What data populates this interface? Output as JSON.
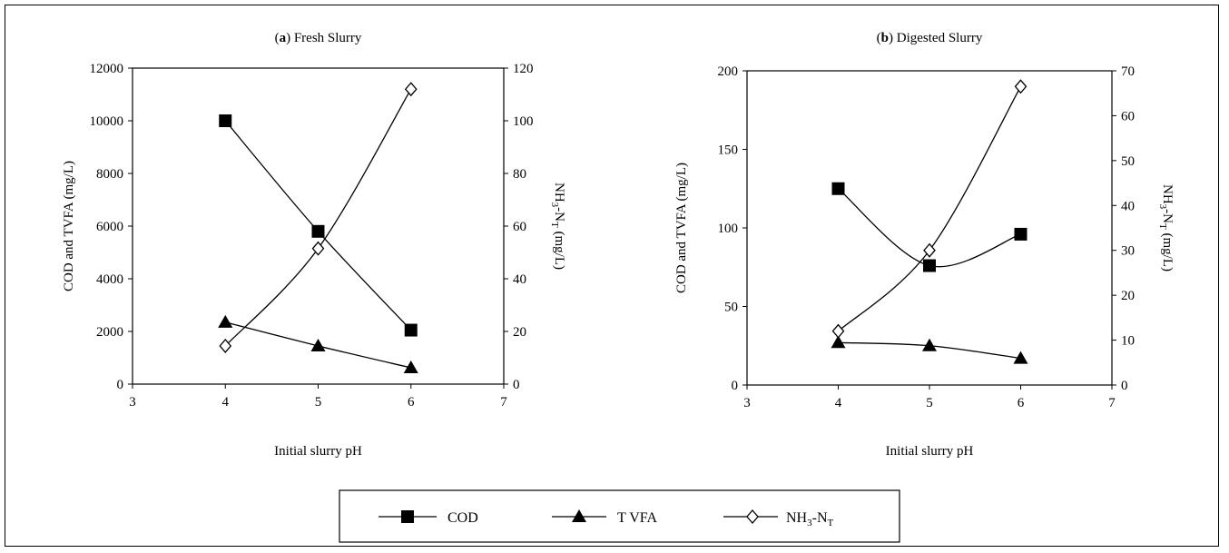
{
  "chart_data": [
    {
      "type": "line",
      "title_letter": "a",
      "title_text": " Fresh Slurry",
      "xlabel": "Initial slurry pH",
      "ylabel_left": "COD  and TVFA (mg/L)",
      "ylabel_right": "NH3-NT (mg/L)",
      "xlim": [
        3,
        7
      ],
      "xticks": [
        "3",
        "4",
        "5",
        "6",
        "7"
      ],
      "ylim_left": [
        0,
        12000
      ],
      "yticks_left": [
        "0",
        "2000",
        "4000",
        "6000",
        "8000",
        "10000",
        "12000"
      ],
      "ylim_right": [
        0,
        120
      ],
      "yticks_right": [
        "0",
        "20",
        "40",
        "60",
        "80",
        "100",
        "120"
      ],
      "x": [
        4,
        5,
        6
      ],
      "series": [
        {
          "name": "COD",
          "axis": "left",
          "marker": "square",
          "values": [
            10000,
            5800,
            2050
          ]
        },
        {
          "name": "TVFA",
          "axis": "left",
          "marker": "triangle",
          "values": [
            2350,
            1450,
            620
          ]
        },
        {
          "name": "NH3-NT",
          "axis": "right",
          "marker": "diamond",
          "values": [
            14.5,
            51.5,
            112
          ]
        }
      ]
    },
    {
      "type": "line",
      "title_letter": "b",
      "title_text": " Digested Slurry",
      "xlabel": "Initial slurry pH",
      "ylabel_left": "COD  and TVFA (mg/L)",
      "ylabel_right": "NH3-NT (mg/L)",
      "xlim": [
        3,
        7
      ],
      "xticks": [
        "3",
        "4",
        "5",
        "6",
        "7"
      ],
      "ylim_left": [
        0,
        200
      ],
      "yticks_left": [
        "0",
        "50",
        "100",
        "150",
        "200"
      ],
      "ylim_right": [
        0,
        70
      ],
      "yticks_right": [
        "0",
        "10",
        "20",
        "30",
        "40",
        "50",
        "60",
        "70"
      ],
      "x": [
        4,
        5,
        6
      ],
      "series": [
        {
          "name": "COD",
          "axis": "left",
          "marker": "square",
          "values": [
            125,
            76,
            96
          ]
        },
        {
          "name": "TVFA",
          "axis": "left",
          "marker": "triangle",
          "values": [
            27,
            25,
            17
          ]
        },
        {
          "name": "NH3-NT",
          "axis": "right",
          "marker": "diamond",
          "values": [
            12,
            30,
            66.5
          ]
        }
      ]
    }
  ],
  "legend": [
    {
      "label": "COD",
      "marker": "square"
    },
    {
      "label": "T VFA",
      "marker": "triangle"
    },
    {
      "label": "NH3-NT",
      "marker": "diamond"
    }
  ]
}
